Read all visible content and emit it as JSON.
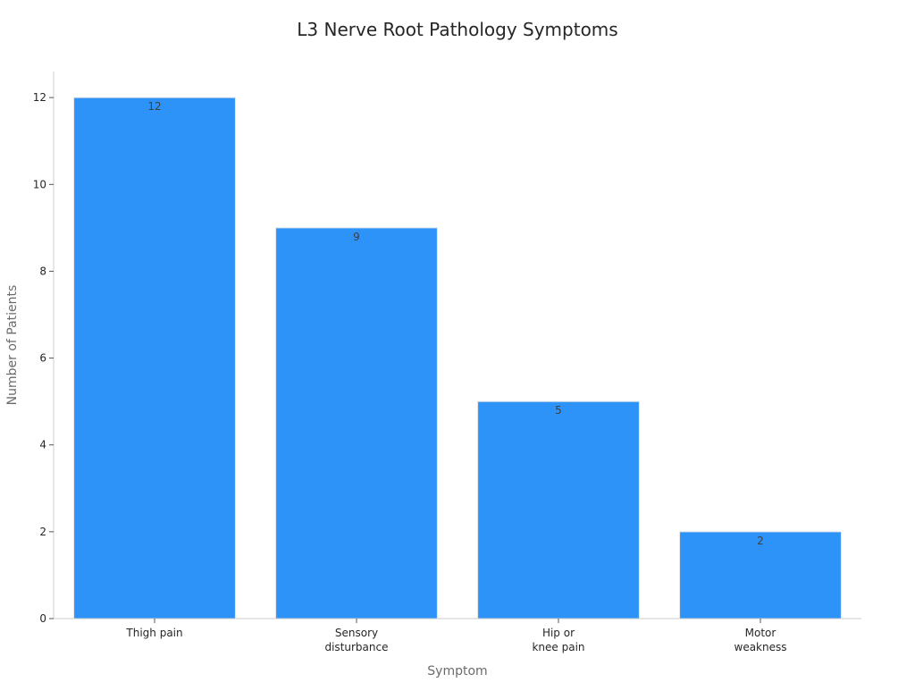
{
  "chart_data": {
    "type": "bar",
    "title": "L3 Nerve Root Pathology Symptoms",
    "xlabel": "Symptom",
    "ylabel": "Number of Patients",
    "categories": [
      [
        "Thigh pain"
      ],
      [
        "Sensory",
        "disturbance"
      ],
      [
        "Hip or",
        "knee pain"
      ],
      [
        "Motor",
        "weakness"
      ]
    ],
    "values": [
      12,
      9,
      5,
      2
    ],
    "ylim": [
      0,
      12.6
    ],
    "yticks": [
      0,
      2,
      4,
      6,
      8,
      10,
      12
    ],
    "grid": false,
    "legend": "none",
    "bar_color": "#2e93f8"
  }
}
